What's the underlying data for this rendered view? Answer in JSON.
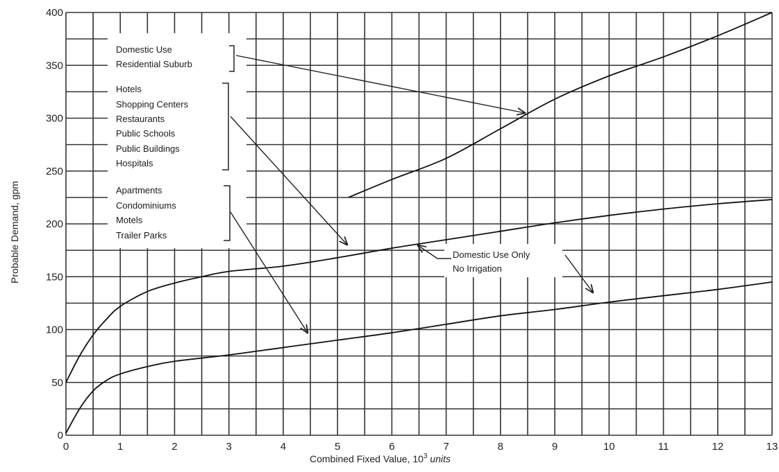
{
  "chart_data": {
    "type": "line",
    "title": "",
    "xlabel": "Combined Fixed Value, 10",
    "xlabel_sup": "3",
    "xlabel_unit": " units",
    "ylabel": "Probable Demand, gpm",
    "xlim": [
      0,
      13
    ],
    "ylim": [
      0,
      400
    ],
    "x_ticks": [
      "0",
      "1",
      "2",
      "3",
      "4",
      "5",
      "6",
      "7",
      "8",
      "9",
      "10",
      "11",
      "12",
      "13"
    ],
    "y_ticks": [
      "0",
      "50",
      "100",
      "150",
      "200",
      "250",
      "300",
      "350",
      "400"
    ],
    "grid": true,
    "series": [
      {
        "x": [
          5.2,
          6,
          7,
          8,
          9,
          10,
          11,
          12,
          13
        ],
        "y": [
          225,
          242,
          262,
          290,
          318,
          340,
          358,
          378,
          400
        ]
      },
      {
        "x": [
          0,
          0.25,
          0.5,
          0.75,
          1,
          1.5,
          2,
          2.5,
          3,
          4,
          5,
          6,
          7,
          8,
          9,
          10,
          11,
          12,
          13
        ],
        "y": [
          50,
          75,
          95,
          110,
          122,
          136,
          144,
          150,
          155,
          160,
          168,
          177,
          185,
          193,
          201,
          208,
          214,
          219,
          223
        ]
      },
      {
        "x": [
          0,
          0.25,
          0.5,
          0.75,
          1,
          1.5,
          2,
          3,
          4,
          5,
          6,
          7,
          8,
          9,
          10,
          11,
          12,
          13
        ],
        "y": [
          2,
          25,
          42,
          52,
          58,
          65,
          70,
          76,
          83,
          90,
          97,
          105,
          113,
          119,
          126,
          132,
          138,
          145
        ]
      }
    ],
    "annotations": {
      "group1": [
        "Domestic Use",
        "Residential Suburb"
      ],
      "group2": [
        "Hotels",
        "Shopping Centers",
        "Restaurants",
        "Public Schools",
        "Public Buildings",
        "Hospitals"
      ],
      "group3": [
        "Apartments",
        "Condominiums",
        "Motels",
        "Trailer Parks"
      ],
      "group4": [
        "Domestic Use Only",
        "No Irrigation"
      ]
    }
  }
}
